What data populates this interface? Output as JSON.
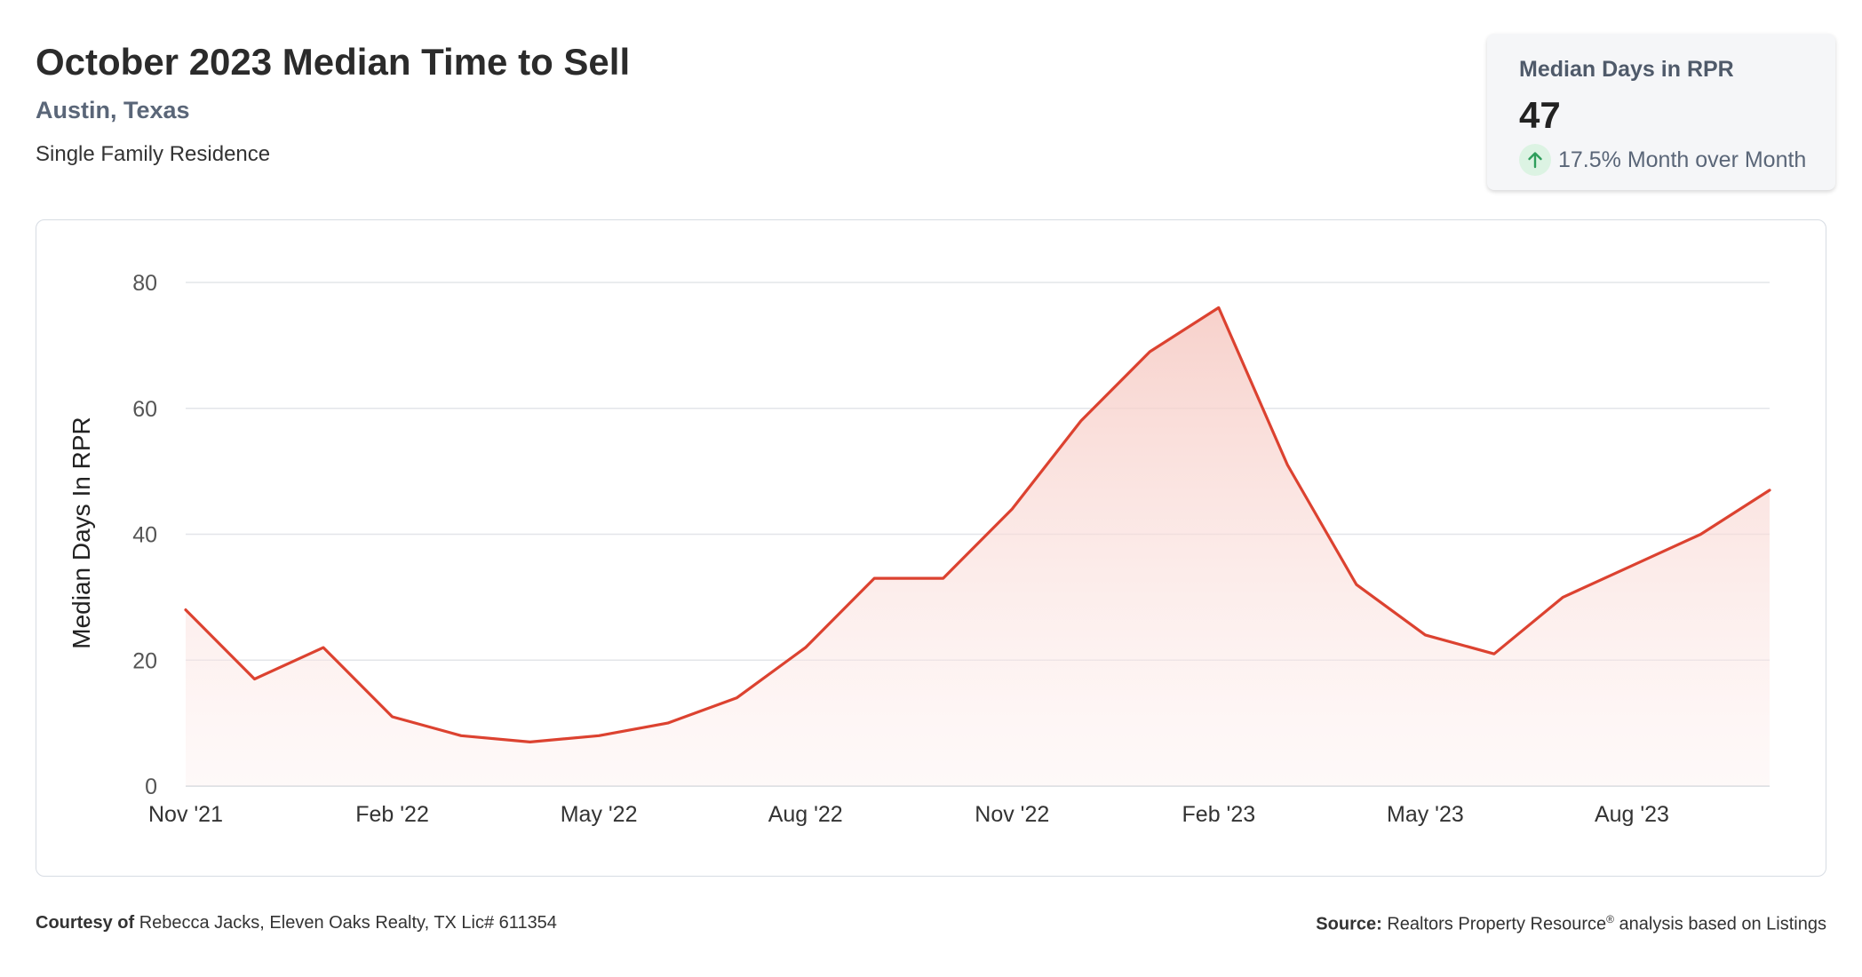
{
  "header": {
    "title": "October 2023 Median Time to Sell",
    "location": "Austin, Texas",
    "property_type": "Single Family Residence"
  },
  "kpi": {
    "label": "Median Days in RPR",
    "value": "47",
    "change_icon": "up-arrow-icon",
    "change_text": "17.5% Month over Month",
    "change_color": "#2e9e5b"
  },
  "footer": {
    "courtesy_label": "Courtesy of",
    "courtesy_text": "Rebecca Jacks, Eleven Oaks Realty, TX Lic# 611354",
    "source_label": "Source:",
    "source_text_a": "Realtors Property Resource",
    "source_sup": "®",
    "source_text_b": "analysis based on Listings"
  },
  "colors": {
    "line": "#dc4230",
    "fill_top": "#f6c9c2",
    "grid": "#e3e5e9",
    "axis_text": "#333333"
  },
  "chart_data": {
    "type": "area",
    "title": "",
    "xlabel": "",
    "ylabel": "Median Days In RPR",
    "ylim": [
      0,
      80
    ],
    "yticks": [
      0,
      20,
      40,
      60,
      80
    ],
    "grid": true,
    "x": [
      "Nov '21",
      "Dec '21",
      "Jan '22",
      "Feb '22",
      "Mar '22",
      "Apr '22",
      "May '22",
      "Jun '22",
      "Jul '22",
      "Aug '22",
      "Sep '22",
      "Oct '22",
      "Nov '22",
      "Dec '22",
      "Jan '23",
      "Feb '23",
      "Mar '23",
      "Apr '23",
      "May '23",
      "Jun '23",
      "Jul '23",
      "Aug '23",
      "Sep '23",
      "Oct '23"
    ],
    "xtick_labels": [
      "Nov '21",
      "Feb '22",
      "May '22",
      "Aug '22",
      "Nov '22",
      "Feb '23",
      "May '23",
      "Aug '23"
    ],
    "series": [
      {
        "values": [
          28,
          17,
          22,
          11,
          8,
          7,
          8,
          10,
          14,
          22,
          33,
          33,
          44,
          58,
          69,
          76,
          51,
          32,
          24,
          21,
          30,
          35,
          40,
          47
        ]
      }
    ]
  }
}
